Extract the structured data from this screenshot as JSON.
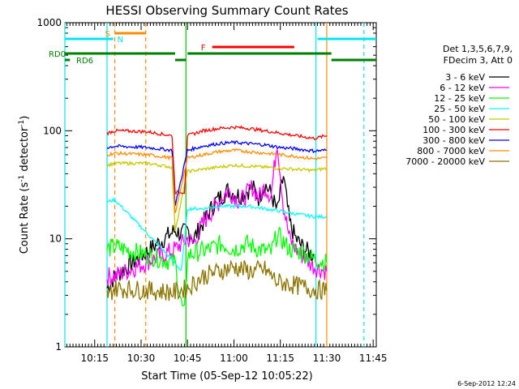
{
  "chart_data": {
    "type": "line",
    "title": "HESSI Observing Summary Count Rates",
    "xlabel": "Start Time (05-Sep-12 10:05:22)",
    "ylabel": "Count Rate (s-1 detector-1)",
    "ylabel_parts": {
      "pre": "Count Rate (s",
      "sup1": "-1",
      "mid": " detector",
      "sup2": "-1",
      "post": ")"
    },
    "y_scale": "log",
    "ylim": [
      1,
      1000
    ],
    "xlim": [
      "10:05:22",
      "11:46:00"
    ],
    "y_ticks": [
      "1",
      "10",
      "100",
      "1000"
    ],
    "x_ticks": [
      "10:15",
      "10:30",
      "10:45",
      "11:00",
      "11:15",
      "11:30",
      "11:45"
    ],
    "legend_header": [
      "Det 1,3,5,6,7,9,",
      "FDecim 3, Att 0"
    ],
    "legend_placement": "right",
    "footer_date": "6-Sep-2012 12:24",
    "flags": [
      {
        "label": "S",
        "color": "#ff8c00",
        "segments": [
          [
            "10:21:30",
            "10:31:30"
          ]
        ]
      },
      {
        "label": "N",
        "color": "#00e5ee",
        "segments": [
          [
            "10:05:22",
            "10:21:00"
          ],
          [
            "11:27:00",
            "11:46:00"
          ]
        ]
      },
      {
        "label": "F",
        "color": "#ff0000",
        "segments": [
          [
            "10:53:00",
            "11:19:30"
          ]
        ]
      },
      {
        "label": "RD0",
        "color": "#008000",
        "segments": [
          [
            "10:05:22",
            "10:41:00"
          ],
          [
            "10:45:00",
            "11:31:30"
          ]
        ]
      },
      {
        "label": "RD6",
        "color": "#008000",
        "segments": [
          [
            "10:05:22",
            "10:07:00"
          ],
          [
            "10:41:00",
            "10:44:30"
          ],
          [
            "11:31:30",
            "11:46:00"
          ]
        ]
      }
    ],
    "markers": {
      "solid_cyan": [
        "10:05:22",
        "10:19:00",
        "11:26:30"
      ],
      "dashed_cyan": [
        "11:42:00"
      ],
      "dashed_orange": [
        "10:21:30",
        "10:31:30"
      ],
      "solid_orange": [
        "11:30:00"
      ],
      "solid_green": [
        "10:44:30"
      ]
    },
    "series": [
      {
        "name": "3 - 6 keV",
        "color": "#000000",
        "x": [
          "10:19:00",
          "10:21:30",
          "10:41:00",
          "10:43:00",
          "10:45:00",
          "10:47:00",
          "10:50:00",
          "10:54:00",
          "10:58:00",
          "11:02:00",
          "11:06:00",
          "11:08:00",
          "11:10:00",
          "11:12:00",
          "11:14:00",
          "11:16:00",
          "11:18:00",
          "11:20:00",
          "11:22:00",
          "11:24:00",
          "11:26:00"
        ],
        "y": [
          3.5,
          4.5,
          12,
          11,
          12,
          10,
          14,
          22,
          28,
          25,
          30,
          24,
          32,
          26,
          18,
          38,
          14,
          10,
          8.5,
          7.5,
          7
        ]
      },
      {
        "name": "6 - 12 keV",
        "color": "#ff00ff",
        "x": [
          "10:19:00",
          "10:21:30",
          "10:41:00",
          "10:43:00",
          "10:45:00",
          "10:47:00",
          "10:50:00",
          "10:54:00",
          "10:58:00",
          "11:02:00",
          "11:06:00",
          "11:08:00",
          "11:10:00",
          "11:12:00",
          "11:14:00",
          "11:16:00",
          "11:18:00",
          "11:20:00",
          "11:22:00",
          "11:26:00",
          "11:30:00"
        ],
        "y": [
          4.5,
          4.5,
          8,
          9,
          10,
          9,
          14,
          20,
          28,
          22,
          30,
          24,
          30,
          25,
          80,
          20,
          10,
          8,
          7,
          5.5,
          5
        ]
      },
      {
        "name": "12 - 25 keV",
        "color": "#00ff00",
        "x": [
          "10:19:00",
          "10:21:30",
          "10:41:00",
          "10:43:00",
          "10:44:00",
          "10:45:00",
          "10:48:00",
          "10:52:00",
          "10:56:00",
          "11:00:00",
          "11:04:00",
          "11:08:00",
          "11:12:00",
          "11:14:00",
          "11:18:00",
          "11:22:00",
          "11:26:00",
          "11:30:00"
        ],
        "y": [
          8,
          8.5,
          6,
          2.5,
          2,
          7,
          7.5,
          8,
          9,
          8,
          9,
          8,
          7.5,
          11,
          8,
          7.5,
          6.5,
          6
        ]
      },
      {
        "name": "25 - 50 keV",
        "color": "#00ffff",
        "x": [
          "10:19:00",
          "10:21:30",
          "10:41:00",
          "10:43:00",
          "10:45:00",
          "10:50:00",
          "10:55:00",
          "11:00:00",
          "11:05:00",
          "11:10:00",
          "11:15:00",
          "11:20:00",
          "11:26:00",
          "11:30:00"
        ],
        "y": [
          22,
          23,
          6,
          5,
          19,
          19,
          20,
          20,
          20,
          19,
          18,
          17,
          16,
          16
        ]
      },
      {
        "name": "50 - 100 keV",
        "color": "#c8c800",
        "x": [
          "10:19:00",
          "10:21:30",
          "10:32:00",
          "10:40:00",
          "10:41:00",
          "10:45:00",
          "10:50:00",
          "10:55:00",
          "11:00:00",
          "11:05:00",
          "11:10:00",
          "11:15:00",
          "11:20:00",
          "11:26:00",
          "11:30:00"
        ],
        "y": [
          48,
          50,
          50,
          46,
          12,
          42,
          44,
          46,
          48,
          47,
          46,
          45,
          44,
          43,
          45
        ]
      },
      {
        "name": "100 - 300 keV",
        "color": "#ff0000",
        "x": [
          "10:19:00",
          "10:21:30",
          "10:32:00",
          "10:40:00",
          "10:41:00",
          "10:44:00",
          "10:45:00",
          "10:50:00",
          "10:55:00",
          "11:00:00",
          "11:05:00",
          "11:10:00",
          "11:15:00",
          "11:20:00",
          "11:26:00",
          "11:30:00"
        ],
        "y": [
          95,
          100,
          98,
          90,
          27,
          27,
          90,
          100,
          105,
          108,
          105,
          100,
          95,
          90,
          85,
          90
        ]
      },
      {
        "name": "300 - 800 keV",
        "color": "#0000ff",
        "x": [
          "10:19:00",
          "10:21:30",
          "10:32:00",
          "10:40:00",
          "10:41:00",
          "10:45:00",
          "10:50:00",
          "10:55:00",
          "11:00:00",
          "11:05:00",
          "11:10:00",
          "11:15:00",
          "11:20:00",
          "11:26:00",
          "11:30:00"
        ],
        "y": [
          70,
          72,
          70,
          66,
          20,
          66,
          72,
          76,
          78,
          76,
          74,
          70,
          68,
          65,
          66
        ]
      },
      {
        "name": "800 - 7000 keV",
        "color": "#ff8c00",
        "x": [
          "10:19:00",
          "10:21:30",
          "10:32:00",
          "10:40:00",
          "10:41:00",
          "10:45:00",
          "10:50:00",
          "10:55:00",
          "11:00:00",
          "11:05:00",
          "11:10:00",
          "11:15:00",
          "11:20:00",
          "11:26:00",
          "11:30:00"
        ],
        "y": [
          60,
          62,
          60,
          56,
          17,
          56,
          60,
          64,
          66,
          64,
          62,
          60,
          58,
          55,
          56
        ]
      },
      {
        "name": "7000 - 20000 keV",
        "color": "#8b7500",
        "x": [
          "10:19:00",
          "10:21:30",
          "10:41:00",
          "10:45:00",
          "10:50:00",
          "10:55:00",
          "11:00:00",
          "11:05:00",
          "11:10:00",
          "11:14:00",
          "11:18:00",
          "11:22:00",
          "11:26:00",
          "11:30:00"
        ],
        "y": [
          3,
          3.5,
          3.2,
          3.5,
          4.5,
          5,
          5.5,
          5,
          5.2,
          4,
          3.8,
          3.6,
          3.4,
          3.3
        ]
      }
    ]
  }
}
